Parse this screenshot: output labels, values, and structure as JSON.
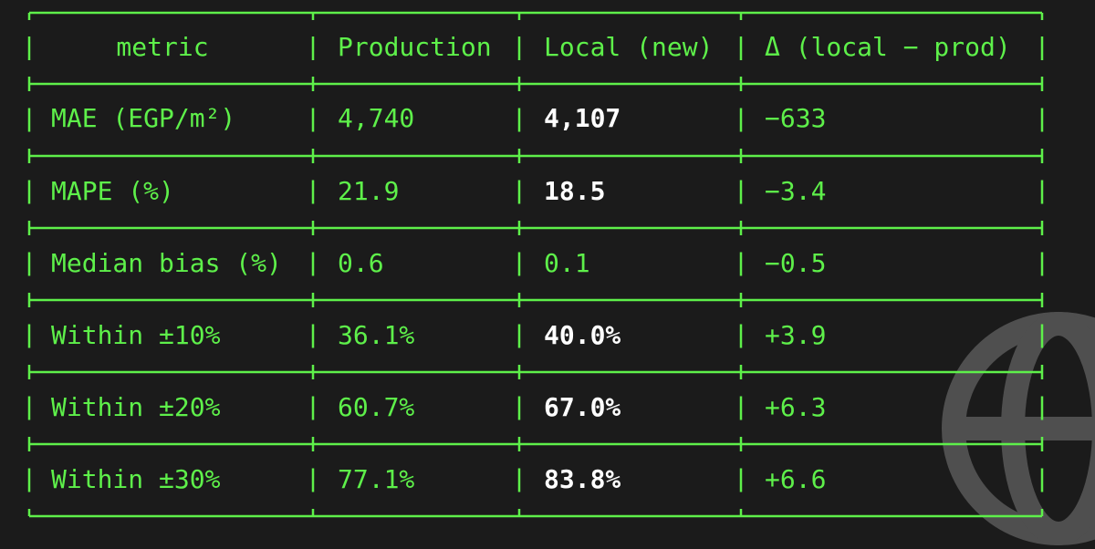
{
  "table": {
    "header": [
      "metric",
      "Production",
      "Local (new)",
      "Δ (local − prod)"
    ],
    "rows": [
      [
        "MAE (EGP/m²)",
        "4,740",
        "4,107",
        "−633"
      ],
      [
        "MAPE (%)",
        "21.9",
        "18.5",
        "−3.4"
      ],
      [
        "Median bias (%)",
        "0.6",
        "0.1",
        "−0.5"
      ],
      [
        "Within ±10%",
        "36.1%",
        "40.0%",
        "+3.9"
      ],
      [
        "Within ±20%",
        "60.7%",
        "67.0%",
        "+6.3"
      ],
      [
        "Within ±30%",
        "77.1%",
        "83.8%",
        "+6.6"
      ]
    ]
  }
}
